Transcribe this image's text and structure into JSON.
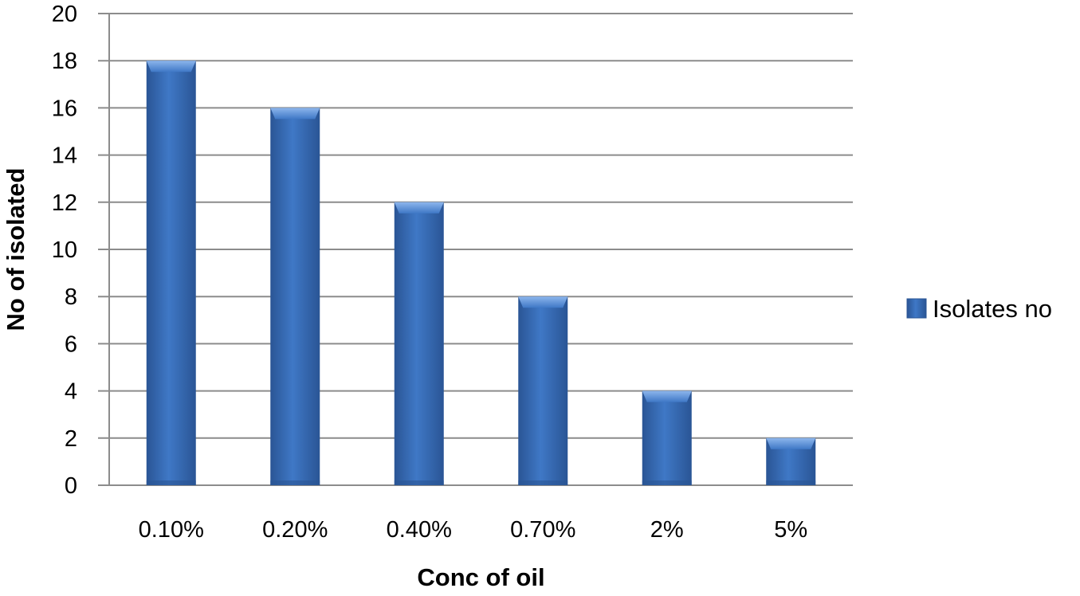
{
  "chart_data": {
    "type": "bar",
    "title": "",
    "xlabel": "Conc of oil",
    "ylabel": "No of isolated",
    "categories": [
      "0.10%",
      "0.20%",
      "0.40%",
      "0.70%",
      "2%",
      "5%"
    ],
    "series": [
      {
        "name": "Isolates no",
        "values": [
          18,
          16,
          12,
          8,
          4,
          2
        ]
      }
    ],
    "ylim": [
      0,
      20
    ],
    "ytick_step": 2,
    "grid": true,
    "legend": "right",
    "colors": {
      "bar": "#3f78c6",
      "bar_dark": "#2a5595",
      "bar_light": "#6fa0e0",
      "grid": "#8c8c8c"
    }
  }
}
